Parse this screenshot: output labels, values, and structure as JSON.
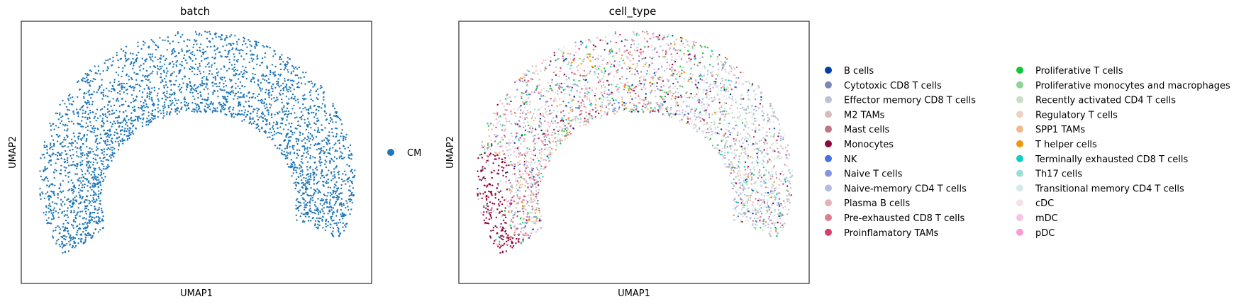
{
  "chart_data": [
    {
      "type": "scatter",
      "title": "batch",
      "xlabel": "UMAP1",
      "ylabel": "UMAP2",
      "ticks": false,
      "grid": false,
      "legend_placement": "right",
      "categories": [
        {
          "name": "CM",
          "color": "#1f77b4"
        }
      ],
      "shape": "crescent point cloud, dense band opening toward the bottom"
    },
    {
      "type": "scatter",
      "title": "cell_type",
      "xlabel": "UMAP1",
      "ylabel": "UMAP2",
      "ticks": false,
      "grid": false,
      "legend_placement": "right",
      "legend_columns": 2,
      "categories": [
        {
          "name": "B cells",
          "color": "#023fa5"
        },
        {
          "name": "Cytotoxic CD8 T cells",
          "color": "#7d87b9"
        },
        {
          "name": "Effector memory CD8 T cells",
          "color": "#bec1d4"
        },
        {
          "name": "M2 TAMs",
          "color": "#d6bcc0"
        },
        {
          "name": "Mast cells",
          "color": "#bb7784"
        },
        {
          "name": "Monocytes",
          "color": "#8e063b"
        },
        {
          "name": "NK",
          "color": "#4a6fe3"
        },
        {
          "name": "Naive T cells",
          "color": "#8595e1"
        },
        {
          "name": "Naive-memory CD4 T cells",
          "color": "#b5bbe3"
        },
        {
          "name": "Plasma B cells",
          "color": "#e6afb9"
        },
        {
          "name": "Pre-exhausted CD8 T cells",
          "color": "#e07b91"
        },
        {
          "name": "Proinflamatory TAMs",
          "color": "#d33f6a"
        },
        {
          "name": "Proliferative T cells",
          "color": "#11c638"
        },
        {
          "name": "Proliferative monocytes and macrophages",
          "color": "#8dd593"
        },
        {
          "name": "Recently activated CD4 T cells",
          "color": "#c6dec7"
        },
        {
          "name": "Regulatory T cells",
          "color": "#ead3c6"
        },
        {
          "name": "SPP1 TAMs",
          "color": "#f0b98d"
        },
        {
          "name": "T helper cells",
          "color": "#ef9708"
        },
        {
          "name": "Terminally exhausted CD8 T cells",
          "color": "#0fcfc0"
        },
        {
          "name": "Th17 cells",
          "color": "#9cded6"
        },
        {
          "name": "Transitional memory CD4 T cells",
          "color": "#d5eae7"
        },
        {
          "name": "cDC",
          "color": "#f3e1eb"
        },
        {
          "name": "mDC",
          "color": "#f6c4e1"
        },
        {
          "name": "pDC",
          "color": "#f79cd4"
        }
      ],
      "shape": "same crescent embedding; Monocytes concentrated on the left edge, Naive-memory CD4 T cells along the right arm"
    }
  ]
}
